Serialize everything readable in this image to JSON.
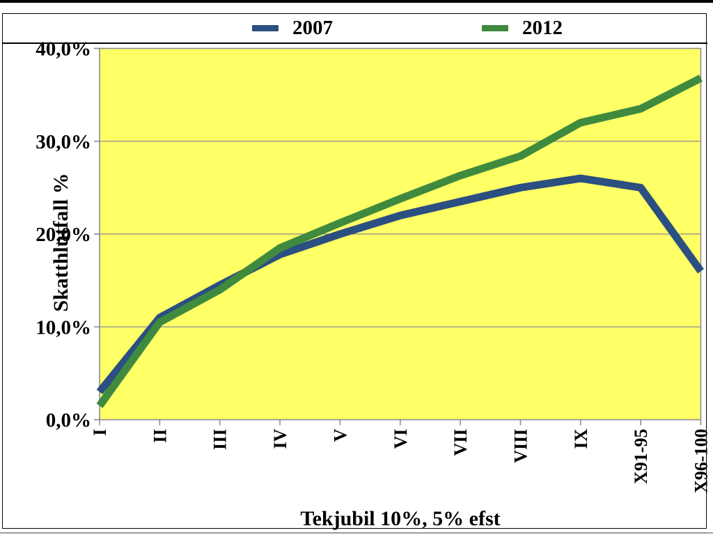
{
  "chart_data": {
    "type": "line",
    "categories": [
      "I",
      "II",
      "III",
      "IV",
      "V",
      "VI",
      "VII",
      "VIII",
      "IX",
      "X91-95",
      "X96-100"
    ],
    "series": [
      {
        "name": "2007",
        "color": "#2b4f81",
        "values": [
          3.0,
          11.0,
          14.5,
          17.8,
          20.0,
          22.0,
          23.5,
          25.0,
          26.0,
          25.0,
          16.0
        ]
      },
      {
        "name": "2012",
        "color": "#3f8a3f",
        "values": [
          1.5,
          10.5,
          14.0,
          18.5,
          21.2,
          23.8,
          26.3,
          28.4,
          32.0,
          33.5,
          36.8
        ]
      }
    ],
    "title": "",
    "xlabel": "Tekjubil 10%, 5% efst",
    "ylabel": "Skatthlutfall %",
    "ylim": [
      0,
      40
    ],
    "ytick_step": 10,
    "ytick_labels": [
      "0,0%",
      "10,0%",
      "20,0%",
      "30,0%",
      "40,0%"
    ],
    "grid": true,
    "legend_position": "top",
    "plot_bg": "#ffff66",
    "axis_color": "#8b8b96"
  }
}
